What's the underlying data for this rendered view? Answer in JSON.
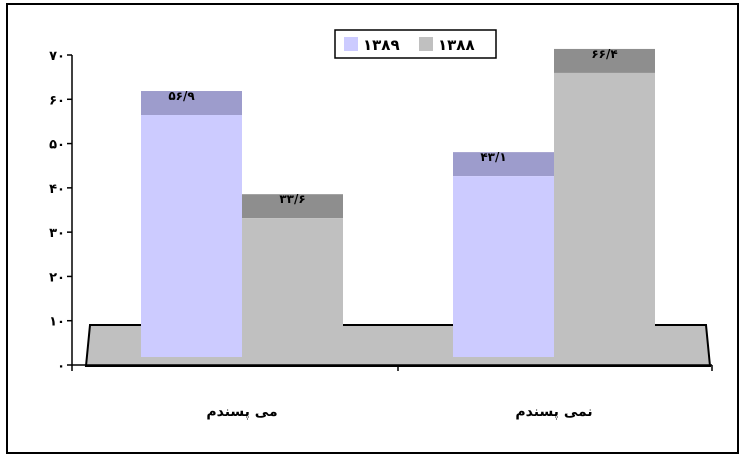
{
  "chart_data": {
    "type": "bar",
    "style": "3d-clustered",
    "categories": [
      "می پسندم",
      "نمی پسندم"
    ],
    "series": [
      {
        "name": "۱۳۸۹",
        "values": [
          56.9,
          43.1
        ],
        "labels": [
          "۵۶/۹",
          "۴۳/۱"
        ],
        "color": "#cccbff",
        "top_color": "#9d9ccc"
      },
      {
        "name": "۱۳۸۸",
        "values": [
          33.6,
          66.4
        ],
        "labels": [
          "۳۳/۶",
          "۶۶/۴"
        ],
        "color": "#c0c0c0",
        "top_color": "#8e8e8e"
      }
    ],
    "ylim": [
      0,
      70
    ],
    "yticks": [
      0,
      10,
      20,
      30,
      40,
      50,
      60,
      70
    ],
    "ytick_labels": [
      "۰",
      "۱۰",
      "۲۰",
      "۳۰",
      "۴۰",
      "۵۰",
      "۶۰",
      "۷۰"
    ],
    "legend_position": "top",
    "grid": false,
    "floor_color": "#c0c0c0",
    "title": "",
    "xlabel": "",
    "ylabel": ""
  }
}
